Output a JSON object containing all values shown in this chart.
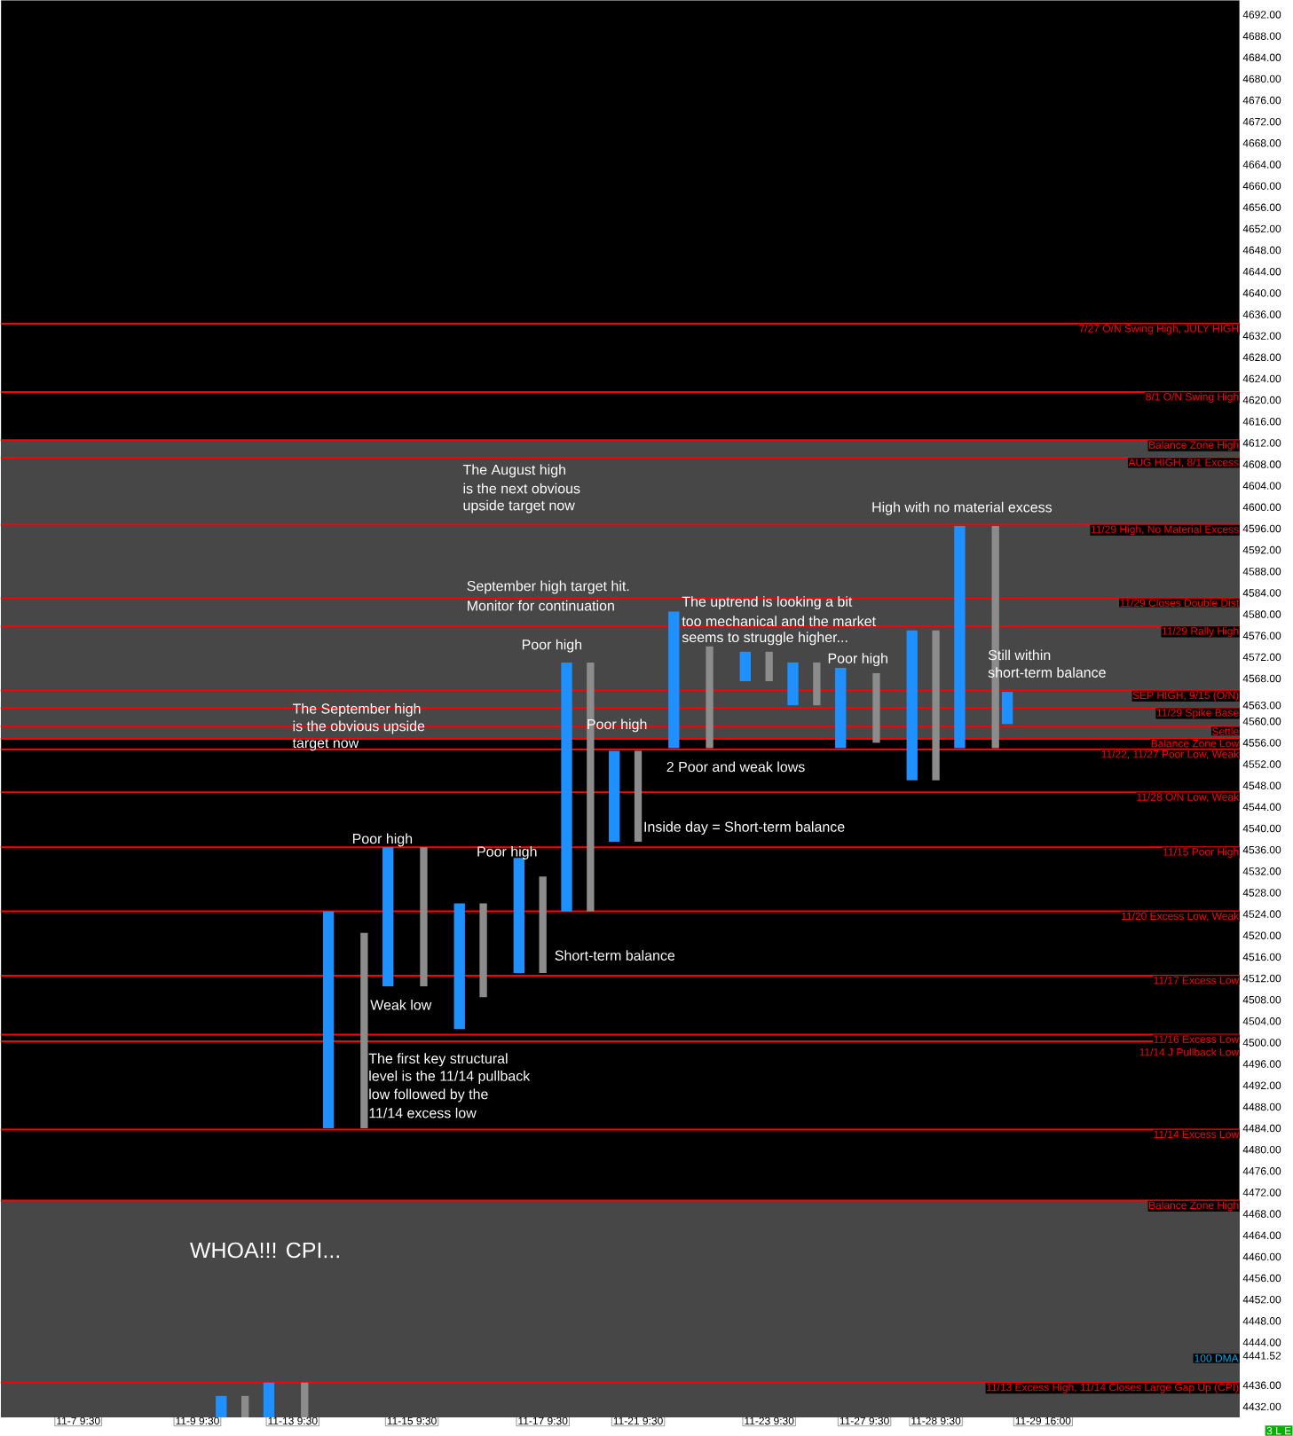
{
  "chart_data": {
    "type": "bar",
    "ylim": [
      4430,
      4694.7
    ],
    "categories": [
      null,
      null,
      null,
      null,
      null,
      null,
      "11-7  9:30",
      null,
      null,
      null,
      null,
      null,
      null,
      null,
      null,
      null,
      "11-9  9:30",
      null,
      null,
      null,
      null,
      null,
      null,
      null,
      "11-13  9:30",
      null,
      null,
      null,
      null,
      null,
      null,
      null,
      null,
      null,
      "11-15  9:30",
      null,
      null,
      null,
      null,
      null,
      null,
      null,
      null,
      null,
      null,
      "11-17  9:30",
      null,
      null,
      null,
      null,
      null,
      null,
      null,
      "11-21  9:30",
      null,
      null,
      null,
      null,
      null,
      null,
      null,
      null,
      null,
      null,
      "11-23  9:30",
      null,
      null,
      null,
      null,
      null,
      null,
      null,
      "11-27  9:30",
      null,
      null,
      null,
      null,
      null,
      "11-28  9:30",
      null,
      null,
      null,
      null,
      null,
      null,
      null,
      null,
      "11-29  16:00",
      null,
      null,
      null,
      null,
      null,
      null,
      null,
      null,
      null,
      null,
      null,
      null,
      null,
      null,
      null,
      null
    ],
    "yticks": [
      {
        "value": 4432,
        "label": "4432.00"
      },
      {
        "value": 4436,
        "label": "4436.00"
      },
      {
        "value": 4440,
        "label": null
      },
      {
        "value": 4441.52,
        "label": "4441.52"
      },
      {
        "value": 4444,
        "label": "4444.00"
      },
      {
        "value": 4448,
        "label": "4448.00"
      },
      {
        "value": 4452,
        "label": "4452.00"
      },
      {
        "value": 4456,
        "label": "4456.00"
      },
      {
        "value": 4460,
        "label": "4460.00"
      },
      {
        "value": 4464,
        "label": "4464.00"
      },
      {
        "value": 4468,
        "label": "4468.00"
      },
      {
        "value": 4472,
        "label": "4472.00"
      },
      {
        "value": 4476,
        "label": "4476.00"
      },
      {
        "value": 4480,
        "label": "4480.00"
      },
      {
        "value": 4484,
        "label": "4484.00"
      },
      {
        "value": 4488,
        "label": "4488.00"
      },
      {
        "value": 4492,
        "label": "4492.00"
      },
      {
        "value": 4496,
        "label": "4496.00"
      },
      {
        "value": 4500,
        "label": "4500.00"
      },
      {
        "value": 4504,
        "label": "4504.00"
      },
      {
        "value": 4508,
        "label": "4508.00"
      },
      {
        "value": 4512,
        "label": "4512.00"
      },
      {
        "value": 4516,
        "label": "4516.00"
      },
      {
        "value": 4520,
        "label": "4520.00"
      },
      {
        "value": 4524,
        "label": "4524.00"
      },
      {
        "value": 4528,
        "label": "4528.00"
      },
      {
        "value": 4532,
        "label": "4532.00"
      },
      {
        "value": 4536,
        "label": "4536.00"
      },
      {
        "value": 4540,
        "label": "4540.00"
      },
      {
        "value": 4544,
        "label": "4544.00"
      },
      {
        "value": 4548,
        "label": "4548.00"
      },
      {
        "value": 4552,
        "label": "4552.00"
      },
      {
        "value": 4556,
        "label": "4556.00"
      },
      {
        "value": 4560,
        "label": "4560.00"
      },
      {
        "value": 4563,
        "label": "4563.00"
      },
      {
        "value": 4564,
        "label": null
      },
      {
        "value": 4568,
        "label": "4568.00"
      },
      {
        "value": 4572,
        "label": "4572.00"
      },
      {
        "value": 4576,
        "label": "4576.00"
      },
      {
        "value": 4580,
        "label": "4580.00"
      },
      {
        "value": 4584,
        "label": "4584.00"
      },
      {
        "value": 4588,
        "label": "4588.00"
      },
      {
        "value": 4592,
        "label": "4592.00"
      },
      {
        "value": 4596,
        "label": "4596.00"
      },
      {
        "value": 4600,
        "label": "4600.00"
      },
      {
        "value": 4604,
        "label": "4604.00"
      },
      {
        "value": 4608,
        "label": "4608.00"
      },
      {
        "value": 4612,
        "label": "4612.00"
      },
      {
        "value": 4616,
        "label": "4616.00"
      },
      {
        "value": 4620,
        "label": "4620.00"
      },
      {
        "value": 4624,
        "label": "4624.00"
      },
      {
        "value": 4628,
        "label": "4628.00"
      },
      {
        "value": 4632,
        "label": "4632.00"
      },
      {
        "value": 4636,
        "label": "4636.00"
      },
      {
        "value": 4640,
        "label": "4640.00"
      },
      {
        "value": 4644,
        "label": "4644.00"
      },
      {
        "value": 4648,
        "label": "4648.00"
      },
      {
        "value": 4652,
        "label": "4652.00"
      },
      {
        "value": 4656,
        "label": "4656.00"
      },
      {
        "value": 4660,
        "label": "4660.00"
      },
      {
        "value": 4664,
        "label": "4664.00"
      },
      {
        "value": 4668,
        "label": "4668.00"
      },
      {
        "value": 4672,
        "label": "4672.00"
      },
      {
        "value": 4676,
        "label": "4676.00"
      },
      {
        "value": 4680,
        "label": "4680.00"
      },
      {
        "value": 4684,
        "label": "4684.00"
      },
      {
        "value": 4688,
        "label": "4688.00"
      },
      {
        "value": 4692,
        "label": "4692.00"
      }
    ],
    "series": [
      {
        "color": "#1e90ff",
        "base": [
          null,
          null,
          null,
          null,
          null,
          null,
          null,
          null,
          null,
          null,
          null,
          null,
          null,
          null,
          null,
          null,
          null,
          null,
          4430,
          null,
          null,
          null,
          4430,
          null,
          null,
          null,
          null,
          4484,
          null,
          null,
          null,
          null,
          4510.5,
          null,
          null,
          null,
          null,
          null,
          4502.5,
          null,
          null,
          null,
          null,
          4513,
          null,
          null,
          null,
          4524.5,
          null,
          null,
          null,
          4537.5,
          null,
          null,
          null,
          null,
          4555,
          null,
          null,
          null,
          null,
          null,
          4567.5,
          null,
          null,
          null,
          4563,
          null,
          null,
          null,
          4555,
          null,
          null,
          null,
          null,
          null,
          4549,
          null,
          null,
          null,
          4555,
          null,
          null,
          null,
          4559.5,
          null,
          null,
          null,
          null,
          null,
          null,
          null,
          null,
          null,
          null,
          null,
          null,
          null,
          null,
          null,
          null,
          null,
          null,
          null
        ],
        "values": [
          null,
          null,
          null,
          null,
          null,
          null,
          null,
          null,
          null,
          null,
          null,
          null,
          null,
          null,
          null,
          null,
          null,
          null,
          4,
          null,
          null,
          null,
          6.5,
          null,
          null,
          null,
          null,
          40.5,
          null,
          null,
          null,
          null,
          26,
          null,
          null,
          null,
          null,
          null,
          23.5,
          null,
          null,
          null,
          null,
          21.5,
          null,
          null,
          null,
          46.5,
          null,
          null,
          null,
          17,
          null,
          null,
          null,
          null,
          25.5,
          null,
          null,
          null,
          null,
          null,
          5.5,
          null,
          null,
          null,
          8,
          null,
          null,
          null,
          15,
          null,
          null,
          null,
          null,
          null,
          28,
          null,
          null,
          null,
          41.5,
          null,
          null,
          null,
          6,
          null,
          null,
          null,
          null,
          null,
          null,
          null,
          null,
          null,
          null,
          null,
          null,
          null,
          null,
          null,
          null,
          null,
          null,
          null
        ]
      },
      {
        "color": "#8c8c8c",
        "base": [
          null,
          null,
          null,
          null,
          null,
          null,
          null,
          null,
          null,
          null,
          null,
          null,
          null,
          null,
          null,
          null,
          null,
          null,
          null,
          null,
          4430,
          null,
          null,
          null,
          null,
          4430,
          null,
          null,
          null,
          null,
          4484,
          null,
          null,
          null,
          null,
          4510.5,
          null,
          null,
          null,
          null,
          4508.5,
          null,
          null,
          null,
          null,
          4513,
          null,
          null,
          null,
          4524.5,
          null,
          null,
          null,
          4537.5,
          null,
          null,
          null,
          null,
          null,
          4555,
          null,
          null,
          null,
          null,
          4567.5,
          null,
          null,
          null,
          4563,
          null,
          null,
          null,
          null,
          4556,
          null,
          null,
          null,
          null,
          4549,
          null,
          null,
          null,
          null,
          4555,
          null,
          null,
          null,
          null,
          null,
          null,
          null,
          null,
          null,
          null,
          null,
          null,
          null,
          null,
          null,
          null,
          null,
          null,
          null,
          null
        ],
        "values": [
          null,
          null,
          null,
          null,
          null,
          null,
          null,
          null,
          null,
          null,
          null,
          null,
          null,
          null,
          null,
          null,
          null,
          null,
          null,
          null,
          4,
          null,
          null,
          null,
          null,
          6.5,
          null,
          null,
          null,
          null,
          36.5,
          null,
          null,
          null,
          null,
          26,
          null,
          null,
          null,
          null,
          17.5,
          null,
          null,
          null,
          null,
          18,
          null,
          null,
          null,
          46.5,
          null,
          null,
          null,
          17,
          null,
          null,
          null,
          null,
          null,
          19,
          null,
          null,
          null,
          null,
          5.5,
          null,
          null,
          null,
          8,
          null,
          null,
          null,
          null,
          13,
          null,
          null,
          null,
          null,
          28,
          null,
          null,
          null,
          null,
          41.5,
          null,
          null,
          null,
          null,
          null,
          null,
          null,
          null,
          null,
          null,
          null,
          null,
          null,
          null,
          null,
          null,
          null,
          null,
          null,
          null
        ]
      }
    ],
    "bands": [
      {
        "axis": "y",
        "from": 4556.75,
        "to": 4612.5,
        "color": "#474747"
      },
      {
        "axis": "y",
        "from": 4430,
        "to": 4470.5,
        "color": "#474747"
      }
    ],
    "ref_lines": [
      {
        "axis": "y",
        "value": 4634.25,
        "label": "7/27 O/N Swing High, JULY HIGH",
        "color": "#ff0000"
      },
      {
        "axis": "y",
        "value": 4621.5,
        "label": "8/1 O/N Swing High",
        "color": "#ff0000"
      },
      {
        "axis": "y",
        "value": 4612.5,
        "label": "Balance Zone High",
        "color": "#ff0000"
      },
      {
        "axis": "y",
        "value": 4609.25,
        "label": "AUG HIGH, 8/1 Excess",
        "color": "#ff0000"
      },
      {
        "axis": "y",
        "value": 4596.75,
        "label": "11/29 High, No Material Excess",
        "color": "#ff0000"
      },
      {
        "axis": "y",
        "value": 4583,
        "label": "11/29 Closes Double Dist",
        "color": "#ff0000"
      },
      {
        "axis": "y",
        "value": 4577.75,
        "label": "11/29 Rally High",
        "color": "#ff0000"
      },
      {
        "axis": "y",
        "value": 4565.75,
        "label": "SEP HIGH, 9/15 (O/N)",
        "color": "#ff0000"
      },
      {
        "axis": "y",
        "value": 4562.5,
        "label": "11/29 Spike Base",
        "color": "#ff0000"
      },
      {
        "axis": "y",
        "value": 4559,
        "label": "Settle",
        "color": "#ff0000"
      },
      {
        "axis": "y",
        "value": 4556.75,
        "label": "Balance Zone Low",
        "color": "#ff0000"
      },
      {
        "axis": "y",
        "value": 4554.75,
        "label": "11/22, 11/27 Poor Low, Weak",
        "color": "#ff0000"
      },
      {
        "axis": "y",
        "value": 4546.75,
        "label": "11/28 O/N Low, Weak",
        "color": "#ff0000"
      },
      {
        "axis": "y",
        "value": 4536.5,
        "label": "11/15 Poor High",
        "color": "#ff0000"
      },
      {
        "axis": "y",
        "value": 4524.5,
        "label": "11/20 Excess Low, Weak",
        "color": "#ff0000"
      },
      {
        "axis": "y",
        "value": 4512.5,
        "label": "11/17 Excess Low",
        "color": "#ff0000"
      },
      {
        "axis": "y",
        "value": 4501.5,
        "label": "11/16 Excess Low",
        "color": "#ff0000"
      },
      {
        "axis": "y",
        "value": 4500.25,
        "label": "11/14 J Pullback Low",
        "color": "#ff0000"
      },
      {
        "axis": "y",
        "value": 4483.75,
        "label": "11/14 Excess Low",
        "color": "#ff0000"
      },
      {
        "axis": "y",
        "value": 4470.5,
        "label": "Balance Zone High",
        "color": "#ff0000"
      },
      {
        "axis": "y",
        "value": 4436.5,
        "label": "11/13 Excess High, 11/14 Closes Large Gap Up (CPI)",
        "color": "#ff0000"
      }
    ],
    "annotations": [
      "The August high",
      "is the next obvious",
      "upside target now",
      "High with no material excess",
      "September high target hit.",
      "Monitor for continuation",
      "The uptrend is looking a bit",
      "too mechanical and the market",
      "seems to struggle higher...",
      "Poor high",
      "Poor high",
      "Still within",
      "short-term balance",
      "Poor high",
      "The September high",
      "is the obvious upside",
      "target now",
      "2 Poor and weak lows",
      "Inside day = Short-term balance",
      "Poor high",
      "Poor high",
      "Short-term balance",
      "Weak low",
      "The first key structural",
      "level is the 11/14 pullback",
      "low followed by the",
      "11/14 excess low",
      "WHOA!!! CPI...",
      "100 DMA",
      "3 L E"
    ]
  }
}
